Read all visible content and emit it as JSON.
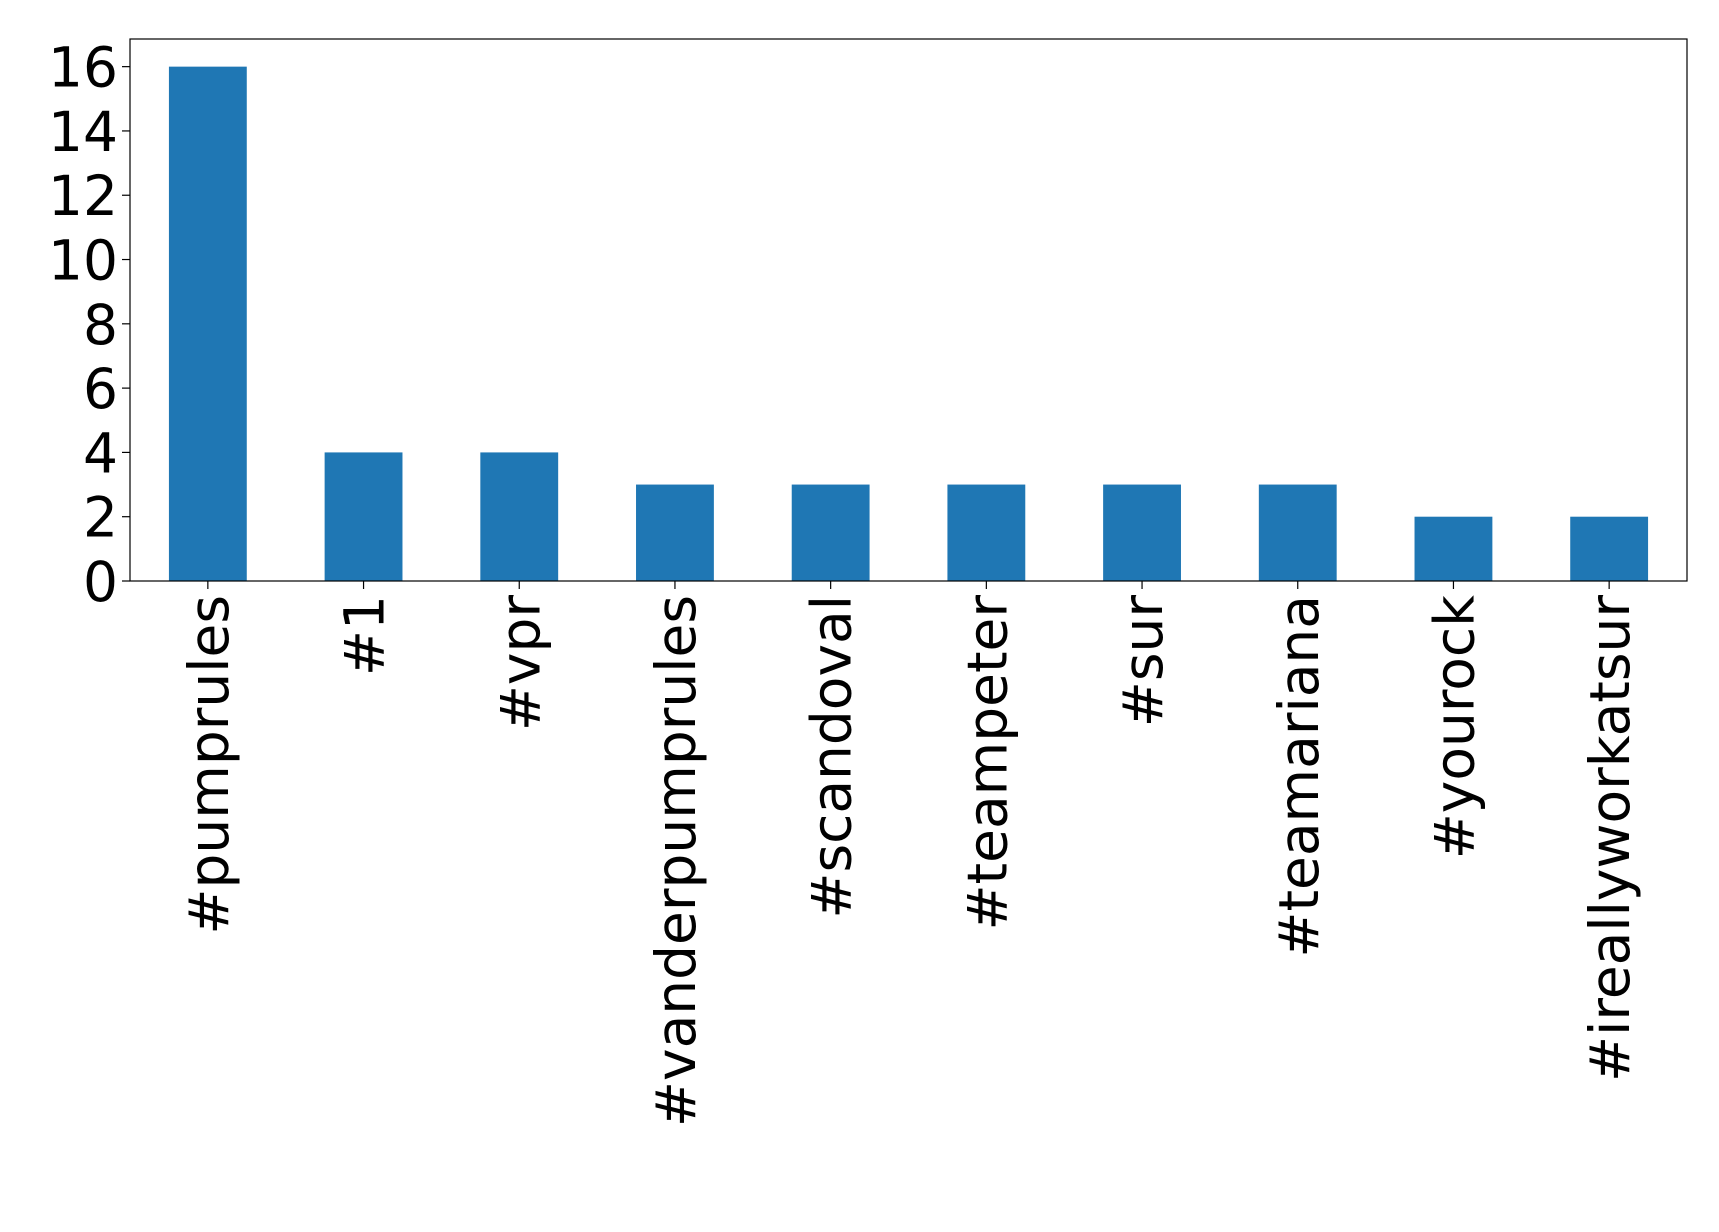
{
  "chart_data": {
    "type": "bar",
    "categories": [
      "#pumprules",
      "#1",
      "#vpr",
      "#vanderpumprules",
      "#scandoval",
      "#teampeter",
      "#sur",
      "#teamariana",
      "#yourock",
      "#ireallyworkatsur"
    ],
    "values": [
      16,
      4,
      4,
      3,
      3,
      3,
      3,
      3,
      2,
      2
    ],
    "color": "#1f77b4",
    "ylim": [
      0,
      16.86
    ],
    "yticks": [
      0,
      2,
      4,
      6,
      8,
      10,
      12,
      14,
      16
    ]
  }
}
